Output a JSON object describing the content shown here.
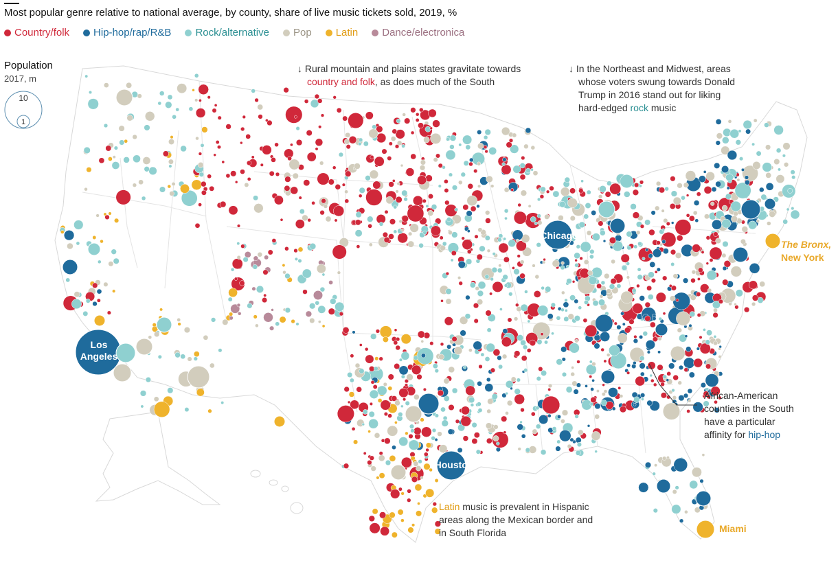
{
  "title": "Most popular genre relative to national average, by county, share of live music tickets sold, 2019, %",
  "legend": [
    {
      "label": "Country/folk",
      "color": "#d0283a"
    },
    {
      "label": "Hip-hop/rap/R&B",
      "color": "#1f6b9c"
    },
    {
      "label": "Rock/alternative",
      "color": "#8fd0d0"
    },
    {
      "label": "Pop",
      "color": "#d2cdbd"
    },
    {
      "label": "Latin",
      "color": "#efb32c"
    },
    {
      "label": "Dance/electronica",
      "color": "#b88a9a"
    }
  ],
  "population": {
    "title": "Population",
    "subtitle": "2017, m",
    "big_value": "10",
    "small_value": "1"
  },
  "annotations": {
    "rural": {
      "arrow": "↓",
      "line1": "Rural mountain and plains states gravitate towards",
      "highlight": "country and folk",
      "line2_rest": ", as does much of the South"
    },
    "northeast": {
      "arrow": "↓",
      "line1": "In the Northeast and Midwest, areas",
      "line2": "whose voters swung towards Donald",
      "line3": "Trump in 2016 stand out for liking",
      "line4_pre": "hard-edged ",
      "highlight": "rock",
      "line4_post": " music"
    },
    "african": {
      "line1": "African-American",
      "line2": "counties in the South",
      "line3": "have a particular",
      "line4_pre": "affinity for ",
      "highlight": "hip-hop"
    },
    "latin": {
      "highlight": "Latin",
      "line1_rest": " music is prevalent in Hispanic",
      "line2": "areas along the Mexican border and",
      "line3": "in South Florida"
    }
  },
  "cities": {
    "los_angeles": {
      "line1": "Los",
      "line2": "Angeles"
    },
    "chicago": "Chicago",
    "houston": "Houston",
    "bronx": {
      "line1": "The Bronx,",
      "line2": "New York"
    },
    "miami": "Miami"
  }
}
